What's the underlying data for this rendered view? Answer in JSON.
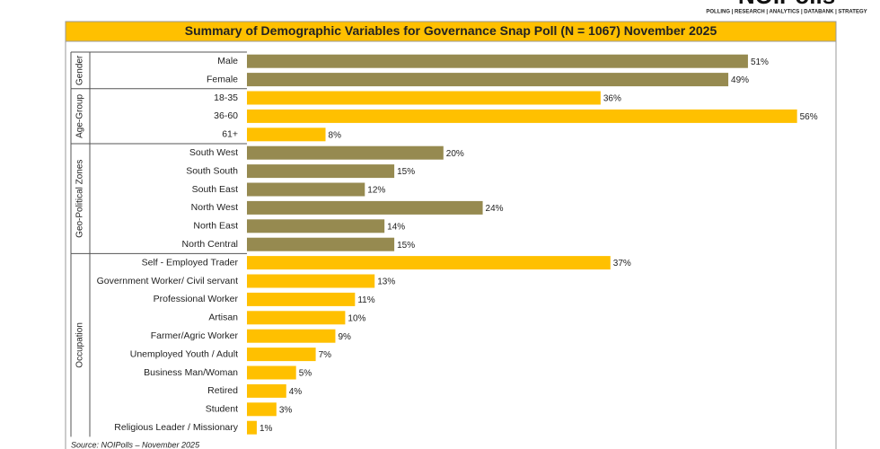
{
  "logo": {
    "name": "NOIPolls",
    "tagline": "POLLING | RESEARCH | ANALYTICS | DATABANK | STRATEGY"
  },
  "chart_data": {
    "type": "bar",
    "title": "Summary of Demographic Variables for Governance  Snap Poll (N = 1067) November 2025",
    "source": "Source: NOIPolls – November 2025",
    "groups": [
      {
        "label": "Gender",
        "color": "#968a50",
        "categories": [
          "Male",
          "Female"
        ],
        "values": [
          51,
          49
        ],
        "value_labels": [
          "51%",
          "49%"
        ]
      },
      {
        "label": "Age-Group",
        "color": "#ffc000",
        "categories": [
          "18-35",
          "36-60",
          "61+"
        ],
        "values": [
          36,
          56,
          8
        ],
        "value_labels": [
          "36%",
          "56%",
          "8%"
        ]
      },
      {
        "label": "Geo-Political Zones",
        "color": "#968a50",
        "categories": [
          "South West",
          "South South",
          "South East",
          "North West",
          "North East",
          "North Central"
        ],
        "values": [
          20,
          15,
          12,
          24,
          14,
          15
        ],
        "value_labels": [
          "20%",
          "15%",
          "12%",
          "24%",
          "14%",
          "15%"
        ]
      },
      {
        "label": "Occupation",
        "color": "#ffc000",
        "categories": [
          "Self - Employed Trader",
          "Government Worker/ Civil servant",
          "Professional Worker",
          "Artisan",
          "Farmer/Agric Worker",
          "Unemployed Youth / Adult",
          "Business Man/Woman",
          "Retired",
          "Student",
          "Religious Leader / Missionary"
        ],
        "values": [
          37,
          13,
          11,
          10,
          9,
          7,
          5,
          4,
          3,
          1
        ],
        "value_labels": [
          "37%",
          "13%",
          "11%",
          "10%",
          "9%",
          "7%",
          "5%",
          "4%",
          "3%",
          "1%"
        ]
      }
    ]
  }
}
